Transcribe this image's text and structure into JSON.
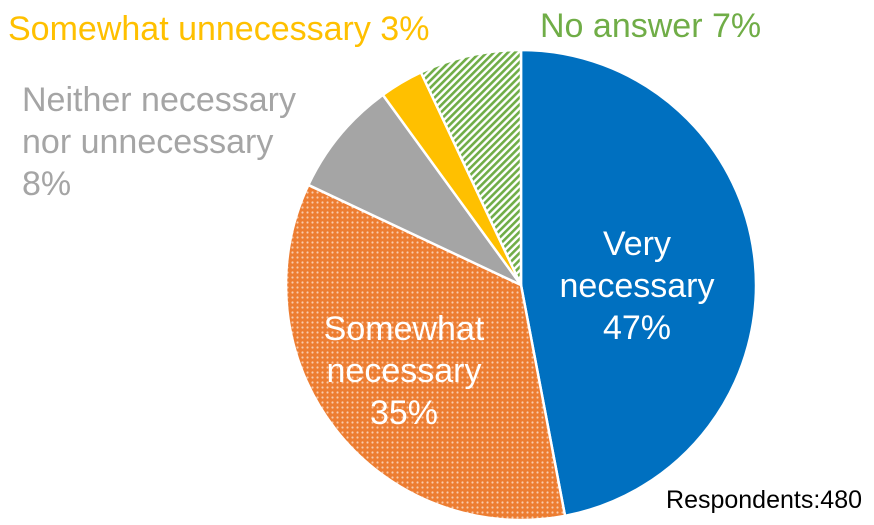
{
  "chart_data": {
    "type": "pie",
    "title": "",
    "start_angle_deg": 0,
    "direction": "clockwise",
    "slices": [
      {
        "label_lines": [
          "Very",
          "necessary",
          "47%"
        ],
        "value": 47,
        "color": "#0070C0",
        "pattern": "solid",
        "label_color": "#ffffff",
        "label_position": "inside"
      },
      {
        "label_lines": [
          "Somewhat",
          "necessary",
          "35%"
        ],
        "value": 35,
        "color": "#ED7D31",
        "pattern": "dots",
        "label_color": "#ffffff",
        "label_position": "inside"
      },
      {
        "label_lines": [
          "Neither necessary",
          "nor unnecessary",
          "8%"
        ],
        "value": 8,
        "color": "#A5A5A5",
        "pattern": "solid",
        "label_color": "#A5A5A5",
        "label_position": "outside-left"
      },
      {
        "label_lines": [
          "Somewhat unnecessary 3%"
        ],
        "value": 3,
        "color": "#FFC000",
        "pattern": "solid",
        "label_color": "#FFC000",
        "label_position": "outside-top"
      },
      {
        "label_lines": [
          "No answer 7%"
        ],
        "value": 7,
        "color": "#70AD47",
        "pattern": "diagonal-stripes",
        "label_color": "#70AD47",
        "label_position": "outside-top"
      }
    ],
    "annotation": "Respondents:480"
  }
}
